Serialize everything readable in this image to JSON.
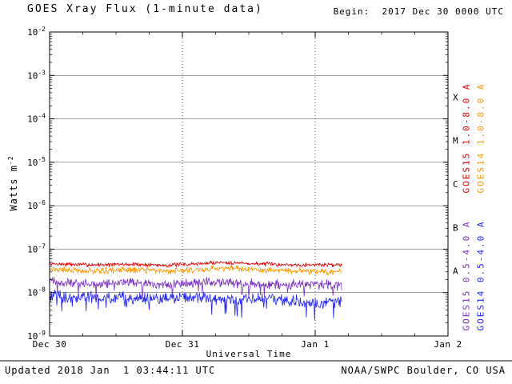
{
  "header": {
    "title": "GOES Xray Flux (1-minute data)",
    "begin": "Begin:  2017 Dec 30 0000 UTC"
  },
  "footer": {
    "updated": "Updated 2018 Jan  1 03:44:11 UTC",
    "source": "NOAA/SWPC Boulder, CO USA"
  },
  "chart_data": {
    "type": "line",
    "title": "GOES Xray Flux (1-minute data)",
    "xlabel": "Universal Time",
    "ylabel": "Watts m-2",
    "ylabel_parts": {
      "main": "Watts m",
      "sup": "-2"
    },
    "ylim": [
      1e-09,
      0.01
    ],
    "x_range_days": [
      0,
      3
    ],
    "y_tick_exponents": [
      -2,
      -3,
      -4,
      -5,
      -6,
      -7,
      -8,
      -9
    ],
    "x_ticks": [
      {
        "day": 0,
        "label": "Dec 30"
      },
      {
        "day": 1,
        "label": "Dec 31"
      },
      {
        "day": 2,
        "label": "Jan 1"
      },
      {
        "day": 3,
        "label": "Jan 2"
      }
    ],
    "grid": {
      "h_decades": [
        -3,
        -4,
        -5,
        -6,
        -7,
        -8
      ],
      "v_days": [
        1,
        2
      ]
    },
    "flare_classes": [
      {
        "label": "X",
        "log_center": -3.5
      },
      {
        "label": "M",
        "log_center": -4.5
      },
      {
        "label": "C",
        "log_center": -5.5
      },
      {
        "label": "B",
        "log_center": -6.5
      },
      {
        "label": "A",
        "log_center": -7.5
      }
    ],
    "series": [
      {
        "id": "goes14-short",
        "name": "GOES14 0.5-4.0 A",
        "color": "#2020ff",
        "seed": 55,
        "noise_log": 0.1,
        "spiky": true,
        "end_day": 2.2,
        "points": [
          [
            0,
            -8.05
          ],
          [
            0.2,
            -8.12
          ],
          [
            0.5,
            -8.1
          ],
          [
            0.8,
            -8.15
          ],
          [
            1.1,
            -8.1
          ],
          [
            1.4,
            -8.18
          ],
          [
            1.7,
            -8.14
          ],
          [
            1.9,
            -8.22
          ],
          [
            2.05,
            -8.26
          ],
          [
            2.2,
            -8.2
          ]
        ]
      },
      {
        "id": "goes15-short",
        "name": "GOES15 0.5-4.0 A",
        "color": "#7a2fc0",
        "seed": 33,
        "noise_log": 0.085,
        "spiky": true,
        "end_day": 2.2,
        "points": [
          [
            0,
            -7.74
          ],
          [
            0.3,
            -7.8
          ],
          [
            0.6,
            -7.78
          ],
          [
            0.9,
            -7.82
          ],
          [
            1.2,
            -7.76
          ],
          [
            1.5,
            -7.8
          ],
          [
            1.8,
            -7.82
          ],
          [
            2.0,
            -7.8
          ],
          [
            2.2,
            -7.84
          ]
        ]
      },
      {
        "id": "goes14-long",
        "name": "GOES14 1.0-8.0 A",
        "color": "#ff9900",
        "seed": 21,
        "noise_log": 0.055,
        "spiky": false,
        "end_day": 2.2,
        "points": [
          [
            0,
            -7.46
          ],
          [
            0.3,
            -7.5
          ],
          [
            0.6,
            -7.48
          ],
          [
            0.9,
            -7.5
          ],
          [
            1.2,
            -7.46
          ],
          [
            1.35,
            -7.44
          ],
          [
            1.6,
            -7.49
          ],
          [
            1.9,
            -7.5
          ],
          [
            2.2,
            -7.52
          ]
        ]
      },
      {
        "id": "goes15-long",
        "name": "GOES15 1.0-8.0 A",
        "color": "#dd0000",
        "seed": 7,
        "noise_log": 0.035,
        "spiky": false,
        "end_day": 2.2,
        "points": [
          [
            0,
            -7.34
          ],
          [
            0.3,
            -7.36
          ],
          [
            0.6,
            -7.35
          ],
          [
            0.9,
            -7.37
          ],
          [
            1.15,
            -7.33
          ],
          [
            1.3,
            -7.3
          ],
          [
            1.5,
            -7.33
          ],
          [
            1.8,
            -7.36
          ],
          [
            2.0,
            -7.36
          ],
          [
            2.2,
            -7.36
          ]
        ]
      }
    ],
    "right_labels": [
      {
        "text": "GOES15 1.0-8.0 A",
        "color": "#dd0000"
      },
      {
        "text": "GOES14 1.0-8.0 A",
        "color": "#ff9900"
      },
      {
        "text": "GOES15 0.5-4.0 A",
        "color": "#7a2fc0"
      },
      {
        "text": "GOES14 0.5-4.0 A",
        "color": "#2020ff"
      }
    ]
  }
}
